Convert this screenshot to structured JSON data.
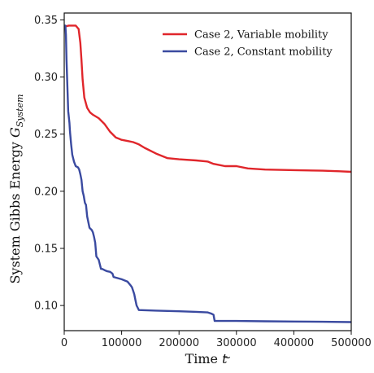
{
  "chart_data": {
    "type": "line",
    "xlabel": "Time t̃",
    "ylabel": "System Gibbs Energy G_System",
    "xlim": [
      0,
      500000
    ],
    "ylim": [
      0.078,
      0.356
    ],
    "xticks": [
      0,
      100000,
      200000,
      300000,
      400000,
      500000
    ],
    "xtick_labels": [
      "0",
      "100000",
      "200000",
      "300000",
      "400000",
      "500000"
    ],
    "yticks": [
      0.1,
      0.15,
      0.2,
      0.25,
      0.3,
      0.35
    ],
    "ytick_labels": [
      "0.10",
      "0.15",
      "0.20",
      "0.25",
      "0.30",
      "0.35"
    ],
    "grid": false,
    "legend_position": "top-right",
    "series": [
      {
        "name": "Case 2, Variable mobility",
        "color": "#e0262b",
        "x": [
          0,
          8000,
          20000,
          25000,
          28000,
          30000,
          32000,
          35000,
          40000,
          45000,
          50000,
          60000,
          70000,
          80000,
          90000,
          95000,
          100000,
          110000,
          120000,
          130000,
          140000,
          160000,
          180000,
          200000,
          230000,
          250000,
          260000,
          270000,
          280000,
          300000,
          320000,
          350000,
          400000,
          450000,
          480000,
          500000
        ],
        "y": [
          0.344,
          0.345,
          0.345,
          0.342,
          0.33,
          0.315,
          0.298,
          0.282,
          0.273,
          0.269,
          0.267,
          0.264,
          0.259,
          0.252,
          0.247,
          0.246,
          0.245,
          0.244,
          0.243,
          0.241,
          0.238,
          0.233,
          0.229,
          0.228,
          0.227,
          0.226,
          0.224,
          0.223,
          0.222,
          0.222,
          0.22,
          0.219,
          0.2185,
          0.218,
          0.2175,
          0.217
        ]
      },
      {
        "name": "Case 2, Constant mobility",
        "color": "#3a4aa0",
        "x": [
          0,
          2000,
          3000,
          4000,
          5000,
          6000,
          7000,
          9000,
          10000,
          12000,
          14000,
          17000,
          20000,
          24000,
          26000,
          28000,
          30000,
          32000,
          34000,
          36000,
          38000,
          40000,
          44000,
          46000,
          48000,
          50000,
          52000,
          54000,
          56000,
          60000,
          64000,
          66000,
          70000,
          75000,
          80000,
          84000,
          86000,
          100000,
          110000,
          115000,
          118000,
          120000,
          122000,
          124000,
          126000,
          128000,
          130000,
          160000,
          200000,
          230000,
          250000,
          256000,
          260000,
          262000,
          300000,
          350000,
          400000,
          450000,
          500000
        ],
        "y": [
          0.345,
          0.345,
          0.337,
          0.315,
          0.3,
          0.285,
          0.27,
          0.26,
          0.252,
          0.241,
          0.232,
          0.226,
          0.222,
          0.221,
          0.219,
          0.215,
          0.21,
          0.2,
          0.196,
          0.19,
          0.188,
          0.178,
          0.168,
          0.167,
          0.166,
          0.164,
          0.16,
          0.155,
          0.143,
          0.14,
          0.132,
          0.132,
          0.131,
          0.13,
          0.1295,
          0.128,
          0.125,
          0.123,
          0.121,
          0.118,
          0.116,
          0.113,
          0.11,
          0.105,
          0.1,
          0.098,
          0.096,
          0.0955,
          0.095,
          0.0945,
          0.094,
          0.093,
          0.092,
          0.0865,
          0.0865,
          0.0862,
          0.086,
          0.0858,
          0.0855
        ]
      }
    ]
  }
}
